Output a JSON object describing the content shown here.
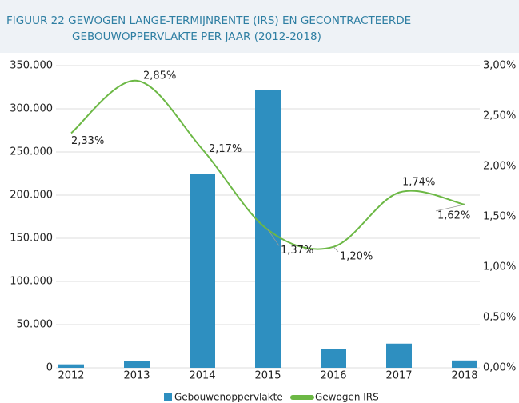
{
  "chart_data": {
    "type": "bar_line",
    "title": [
      "FIGUUR 22  GEWOGEN LANGE-TERMIJNRENTE (IRS) EN GECONTRACTEERDE",
      "GEBOUWOPPERVLAKTE PER JAAR (2012-2018)"
    ],
    "categories": [
      "2012",
      "2013",
      "2014",
      "2015",
      "2016",
      "2017",
      "2018"
    ],
    "series": [
      {
        "name": "Gebouwenoppervlakte",
        "color": "#2e8fc0",
        "type": "bar",
        "values": [
          4000,
          8000,
          225000,
          322000,
          21500,
          28000,
          8500
        ]
      },
      {
        "name": "Gewogen IRS",
        "color": "#6cb845",
        "type": "line",
        "axis": "y2",
        "values": [
          2.33,
          2.85,
          2.17,
          1.37,
          1.2,
          1.74,
          1.62
        ],
        "value_labels": [
          "2,33%",
          "2,85%",
          "2,17%",
          "1,37%",
          "1,20%",
          "1,74%",
          "1,62%"
        ]
      }
    ],
    "ylim": [
      0,
      350000
    ],
    "yticks": [
      {
        "value": 0,
        "label": "0"
      },
      {
        "value": 50000,
        "label": "50.000"
      },
      {
        "value": 100000,
        "label": "100.000"
      },
      {
        "value": 150000,
        "label": "150.000"
      },
      {
        "value": 200000,
        "label": "200.000"
      },
      {
        "value": 250000,
        "label": "250.000"
      },
      {
        "value": 300000,
        "label": "300.000"
      },
      {
        "value": 350000,
        "label": "350.000"
      }
    ],
    "y2lim": [
      0,
      3
    ],
    "y2ticks": [
      {
        "value": 0,
        "label": "0,00%"
      },
      {
        "value": 0.5,
        "label": "0,50%"
      },
      {
        "value": 1,
        "label": "1,00%"
      },
      {
        "value": 1.5,
        "label": "1,50%"
      },
      {
        "value": 2,
        "label": "2,00%"
      },
      {
        "value": 2.5,
        "label": "2,50%"
      },
      {
        "value": 3,
        "label": "3,00%"
      }
    ],
    "grid": true,
    "legend": "bottom"
  }
}
